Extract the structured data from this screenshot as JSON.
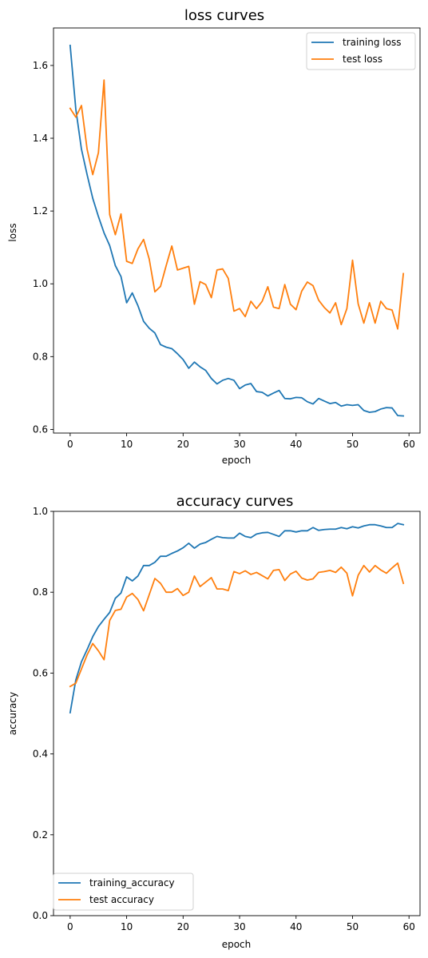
{
  "chart_data": [
    {
      "type": "line",
      "title": "loss curves",
      "xlabel": "epoch",
      "ylabel": "loss",
      "xlim": [
        -2.95,
        61.95
      ],
      "ylim": [
        0.59,
        1.703
      ],
      "xticks": [
        0,
        10,
        20,
        30,
        40,
        50,
        60
      ],
      "yticks": [
        0.6,
        0.8,
        1.0,
        1.2,
        1.4,
        1.6
      ],
      "ytick_labels": [
        "0.6",
        "0.8",
        "1.0",
        "1.2",
        "1.4",
        "1.6"
      ],
      "legend": "top-right",
      "grid": false,
      "x": [
        0,
        1,
        2,
        3,
        4,
        5,
        6,
        7,
        8,
        9,
        10,
        11,
        12,
        13,
        14,
        15,
        16,
        17,
        18,
        19,
        20,
        21,
        22,
        23,
        24,
        25,
        26,
        27,
        28,
        29,
        30,
        31,
        32,
        33,
        34,
        35,
        36,
        37,
        38,
        39,
        40,
        41,
        42,
        43,
        44,
        45,
        46,
        47,
        48,
        49,
        50,
        51,
        52,
        53,
        54,
        55,
        56,
        57,
        58,
        59
      ],
      "series": [
        {
          "name": "training loss",
          "color": "#1f77b4",
          "values": [
            1.655,
            1.48,
            1.37,
            1.3,
            1.235,
            1.185,
            1.14,
            1.105,
            1.05,
            1.02,
            0.948,
            0.975,
            0.94,
            0.897,
            0.878,
            0.865,
            0.833,
            0.826,
            0.822,
            0.808,
            0.792,
            0.768,
            0.785,
            0.772,
            0.762,
            0.74,
            0.725,
            0.735,
            0.74,
            0.735,
            0.712,
            0.722,
            0.726,
            0.704,
            0.702,
            0.692,
            0.7,
            0.707,
            0.685,
            0.684,
            0.688,
            0.687,
            0.676,
            0.67,
            0.685,
            0.678,
            0.671,
            0.674,
            0.664,
            0.668,
            0.666,
            0.668,
            0.652,
            0.647,
            0.649,
            0.656,
            0.66,
            0.659,
            0.638,
            0.637
          ]
        },
        {
          "name": "test loss",
          "color": "#ff7f0e",
          "values": [
            1.482,
            1.458,
            1.49,
            1.37,
            1.3,
            1.36,
            1.56,
            1.19,
            1.135,
            1.192,
            1.062,
            1.056,
            1.096,
            1.122,
            1.068,
            0.978,
            0.993,
            1.05,
            1.104,
            1.038,
            1.043,
            1.048,
            0.944,
            1.006,
            0.998,
            0.962,
            1.038,
            1.041,
            1.015,
            0.925,
            0.932,
            0.91,
            0.952,
            0.932,
            0.952,
            0.992,
            0.936,
            0.932,
            0.998,
            0.944,
            0.929,
            0.98,
            1.005,
            0.995,
            0.955,
            0.935,
            0.92,
            0.948,
            0.888,
            0.932,
            1.065,
            0.945,
            0.892,
            0.948,
            0.892,
            0.952,
            0.932,
            0.928,
            0.876,
            1.028
          ]
        }
      ]
    },
    {
      "type": "line",
      "title": "accuracy curves",
      "xlabel": "epoch",
      "ylabel": "accuracy",
      "xlim": [
        -2.95,
        61.95
      ],
      "ylim": [
        0.0,
        1.0
      ],
      "xticks": [
        0,
        10,
        20,
        30,
        40,
        50,
        60
      ],
      "yticks": [
        0.0,
        0.2,
        0.4,
        0.6,
        0.8,
        1.0
      ],
      "ytick_labels": [
        "0.0",
        "0.2",
        "0.4",
        "0.6",
        "0.8",
        "1.0"
      ],
      "legend": "bottom-left",
      "grid": false,
      "x": [
        0,
        1,
        2,
        3,
        4,
        5,
        6,
        7,
        8,
        9,
        10,
        11,
        12,
        13,
        14,
        15,
        16,
        17,
        18,
        19,
        20,
        21,
        22,
        23,
        24,
        25,
        26,
        27,
        28,
        29,
        30,
        31,
        32,
        33,
        34,
        35,
        36,
        37,
        38,
        39,
        40,
        41,
        42,
        43,
        44,
        45,
        46,
        47,
        48,
        49,
        50,
        51,
        52,
        53,
        54,
        55,
        56,
        57,
        58,
        59
      ],
      "series": [
        {
          "name": "training_accuracy",
          "color": "#1f77b4",
          "values": [
            0.502,
            0.583,
            0.628,
            0.658,
            0.69,
            0.715,
            0.733,
            0.75,
            0.785,
            0.798,
            0.838,
            0.828,
            0.84,
            0.866,
            0.866,
            0.874,
            0.889,
            0.889,
            0.896,
            0.902,
            0.91,
            0.921,
            0.909,
            0.919,
            0.923,
            0.931,
            0.938,
            0.935,
            0.934,
            0.934,
            0.946,
            0.938,
            0.935,
            0.944,
            0.947,
            0.948,
            0.943,
            0.938,
            0.952,
            0.952,
            0.949,
            0.952,
            0.952,
            0.96,
            0.953,
            0.955,
            0.956,
            0.956,
            0.96,
            0.957,
            0.962,
            0.959,
            0.964,
            0.967,
            0.967,
            0.964,
            0.96,
            0.96,
            0.97,
            0.967
          ]
        },
        {
          "name": "test accuracy",
          "color": "#ff7f0e",
          "values": [
            0.567,
            0.575,
            0.61,
            0.645,
            0.673,
            0.655,
            0.633,
            0.73,
            0.755,
            0.758,
            0.788,
            0.797,
            0.782,
            0.754,
            0.794,
            0.834,
            0.822,
            0.8,
            0.8,
            0.809,
            0.792,
            0.8,
            0.84,
            0.814,
            0.825,
            0.836,
            0.808,
            0.808,
            0.804,
            0.851,
            0.846,
            0.853,
            0.844,
            0.849,
            0.841,
            0.833,
            0.854,
            0.856,
            0.829,
            0.845,
            0.852,
            0.835,
            0.83,
            0.833,
            0.849,
            0.851,
            0.854,
            0.849,
            0.862,
            0.847,
            0.791,
            0.842,
            0.866,
            0.85,
            0.866,
            0.855,
            0.847,
            0.86,
            0.872,
            0.822
          ]
        }
      ]
    }
  ]
}
